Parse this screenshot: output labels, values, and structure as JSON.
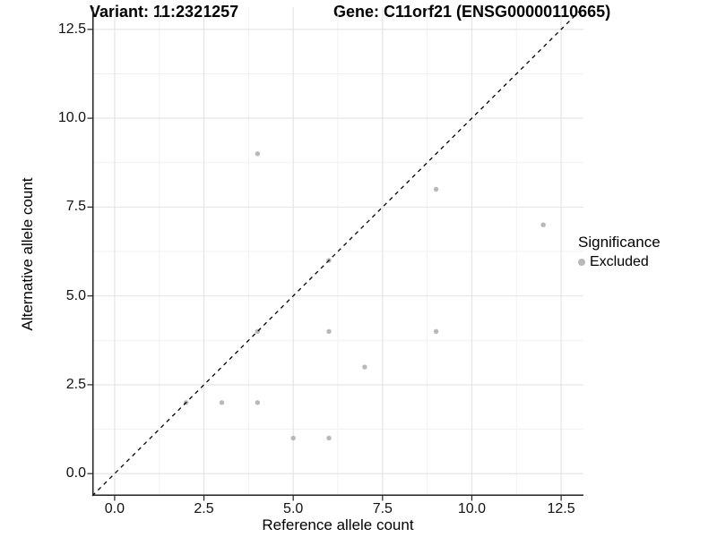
{
  "chart_data": {
    "type": "scatter",
    "title_left": "Variant: 11:2321257",
    "title_right": "Gene: C11orf21 (ENSG00000110665)",
    "xlabel": "Reference allele count",
    "ylabel": "Alternative allele count",
    "axis_range": [
      -0.625,
      13.125
    ],
    "xlim": [
      0,
      12.5
    ],
    "ylim": [
      0,
      12.5
    ],
    "tick_values": [
      0,
      2.5,
      5,
      7.5,
      10,
      12.5
    ],
    "tick_labels": [
      "0.0",
      "2.5",
      "5.0",
      "7.5",
      "10.0",
      "12.5"
    ],
    "minor_tick_values": [
      1.25,
      3.75,
      6.25,
      8.75,
      11.25
    ],
    "grid": {
      "major_color": "#e3e3e3",
      "minor_color": "#f1f1f1",
      "background": "#ffffff"
    },
    "identity_line": {
      "style": "dashed",
      "color": "#000000",
      "slope": 1,
      "intercept": 0
    },
    "series": [
      {
        "name": "Excluded",
        "color": "#b8b8b8",
        "points": [
          [
            2,
            2
          ],
          [
            3,
            2
          ],
          [
            4,
            2
          ],
          [
            4,
            4
          ],
          [
            4,
            9
          ],
          [
            5,
            1
          ],
          [
            6,
            1
          ],
          [
            6,
            4
          ],
          [
            6,
            6
          ],
          [
            7,
            3
          ],
          [
            9,
            4
          ],
          [
            9,
            8
          ],
          [
            12,
            7
          ]
        ]
      }
    ],
    "legend": {
      "title": "Significance",
      "position": "right",
      "items": [
        {
          "label": "Excluded",
          "color": "#b8b8b8",
          "marker": "circle"
        }
      ]
    },
    "axis_color": "#222222"
  }
}
